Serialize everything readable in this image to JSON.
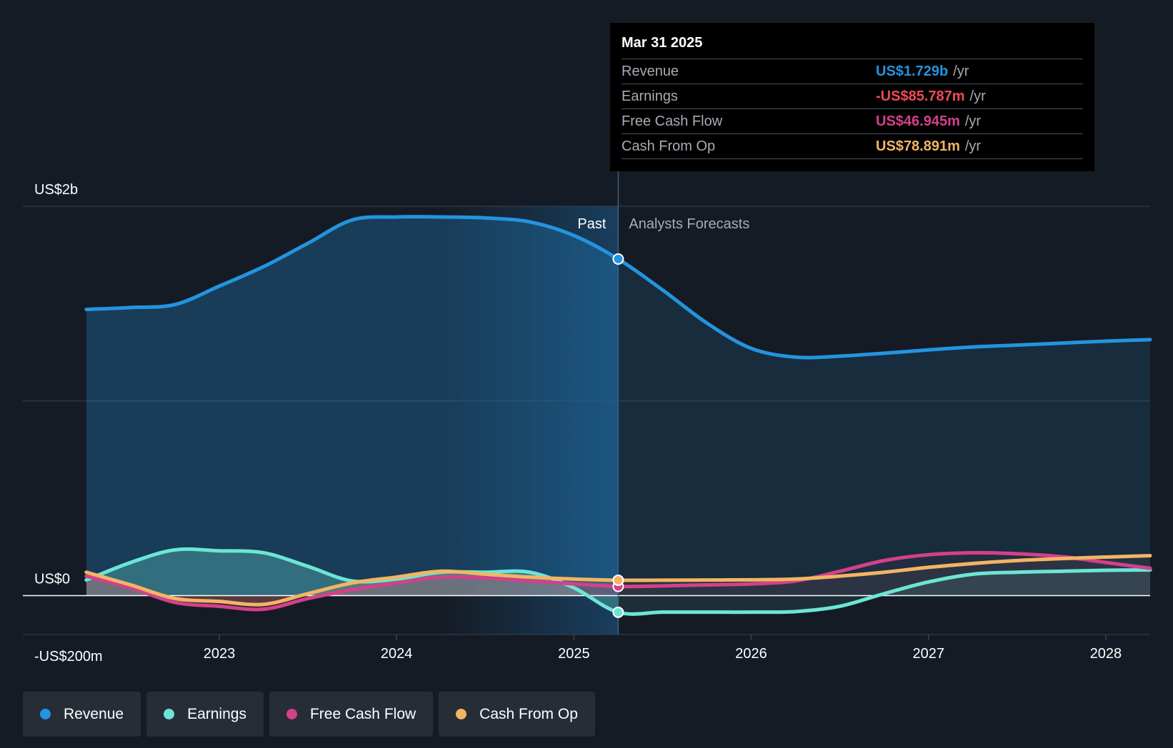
{
  "colors": {
    "revenue": "#2394df",
    "earnings": "#6ce5d6",
    "fcf": "#d2418a",
    "cfo": "#f2b564",
    "earnings_negative": "#f04a57",
    "past_region": "#1a4a72",
    "grid": "#3a414b",
    "zero_line": "#ffffff"
  },
  "tooltip": {
    "date": "Mar 31 2025",
    "rows": [
      {
        "name": "Revenue",
        "value": "US$1.729b",
        "unit": "/yr",
        "color": "#2394df"
      },
      {
        "name": "Earnings",
        "value": "-US$85.787m",
        "unit": "/yr",
        "color": "#f04a57"
      },
      {
        "name": "Free Cash Flow",
        "value": "US$46.945m",
        "unit": "/yr",
        "color": "#d2418a"
      },
      {
        "name": "Cash From Op",
        "value": "US$78.891m",
        "unit": "/yr",
        "color": "#f2b564"
      }
    ]
  },
  "chart_data": {
    "type": "line",
    "title": "",
    "y_unit": "US$ millions",
    "ylim": [
      -200,
      2000
    ],
    "xlim": [
      2022.15,
      2028.25
    ],
    "y_axis_labels": [
      {
        "value": 2000,
        "label": "US$2b"
      },
      {
        "value": 0,
        "label": "US$0"
      },
      {
        "value": -200,
        "label": "-US$200m"
      }
    ],
    "gridlines": [
      2000,
      1000,
      -200
    ],
    "x_ticks": [
      {
        "value": 2023.0,
        "label": "2023"
      },
      {
        "value": 2024.0,
        "label": "2024"
      },
      {
        "value": 2025.0,
        "label": "2025"
      },
      {
        "value": 2026.0,
        "label": "2026"
      },
      {
        "value": 2027.0,
        "label": "2027"
      },
      {
        "value": 2028.0,
        "label": "2028"
      }
    ],
    "past_label": "Past",
    "forecast_label": "Analysts Forecasts",
    "past_start": 2022.25,
    "past_highlight_start": 2024.25,
    "divider": 2025.25,
    "series": [
      {
        "name": "Revenue",
        "key": "revenue",
        "x": [
          2022.25,
          2022.5,
          2022.75,
          2023.0,
          2023.25,
          2023.5,
          2023.75,
          2024.0,
          2024.25,
          2024.5,
          2024.75,
          2025.0,
          2025.25,
          2025.5,
          2025.75,
          2026.0,
          2026.25,
          2026.5,
          2026.75,
          2027.0,
          2027.25,
          2027.5,
          2027.75,
          2028.0,
          2028.25
        ],
        "values": [
          1470,
          1480,
          1495,
          1590,
          1690,
          1810,
          1930,
          1945,
          1945,
          1940,
          1920,
          1850,
          1729,
          1570,
          1400,
          1270,
          1225,
          1230,
          1245,
          1262,
          1277,
          1287,
          1297,
          1307,
          1315
        ]
      },
      {
        "name": "Earnings",
        "key": "earnings",
        "x": [
          2022.25,
          2022.5,
          2022.75,
          2023.0,
          2023.25,
          2023.5,
          2023.75,
          2024.0,
          2024.25,
          2024.5,
          2024.75,
          2025.0,
          2025.25,
          2025.5,
          2025.75,
          2026.0,
          2026.25,
          2026.5,
          2026.75,
          2027.0,
          2027.25,
          2027.5,
          2027.75,
          2028.0,
          2028.25
        ],
        "values": [
          80,
          170,
          235,
          230,
          220,
          150,
          75,
          85,
          120,
          120,
          120,
          40,
          -85.787,
          -85,
          -85,
          -85,
          -82,
          -55,
          10,
          70,
          110,
          120,
          125,
          130,
          132
        ]
      },
      {
        "name": "Free Cash Flow",
        "key": "fcf",
        "x": [
          2022.25,
          2022.5,
          2022.75,
          2023.0,
          2023.25,
          2023.5,
          2023.75,
          2024.0,
          2024.25,
          2024.5,
          2024.75,
          2025.0,
          2025.25,
          2025.5,
          2025.75,
          2026.0,
          2026.25,
          2026.5,
          2026.75,
          2027.0,
          2027.25,
          2027.5,
          2027.75,
          2028.0,
          2028.25
        ],
        "values": [
          100,
          40,
          -35,
          -55,
          -70,
          -15,
          30,
          65,
          95,
          90,
          75,
          60,
          46.945,
          50,
          55,
          60,
          75,
          125,
          180,
          210,
          220,
          215,
          200,
          170,
          140
        ]
      },
      {
        "name": "Cash From Op",
        "key": "cfo",
        "x": [
          2022.25,
          2022.5,
          2022.75,
          2023.0,
          2023.25,
          2023.5,
          2023.75,
          2024.0,
          2024.25,
          2024.5,
          2024.75,
          2025.0,
          2025.25,
          2025.5,
          2025.75,
          2026.0,
          2026.25,
          2026.5,
          2026.75,
          2027.0,
          2027.25,
          2027.5,
          2027.75,
          2028.0,
          2028.25
        ],
        "values": [
          120,
          55,
          -15,
          -30,
          -45,
          10,
          65,
          95,
          125,
          110,
          95,
          85,
          78.891,
          79,
          80,
          81,
          85,
          100,
          120,
          145,
          165,
          180,
          190,
          198,
          205
        ]
      }
    ]
  },
  "legend": [
    {
      "label": "Revenue",
      "color": "#2394df"
    },
    {
      "label": "Earnings",
      "color": "#6ce5d6"
    },
    {
      "label": "Free Cash Flow",
      "color": "#d2418a"
    },
    {
      "label": "Cash From Op",
      "color": "#f2b564"
    }
  ]
}
